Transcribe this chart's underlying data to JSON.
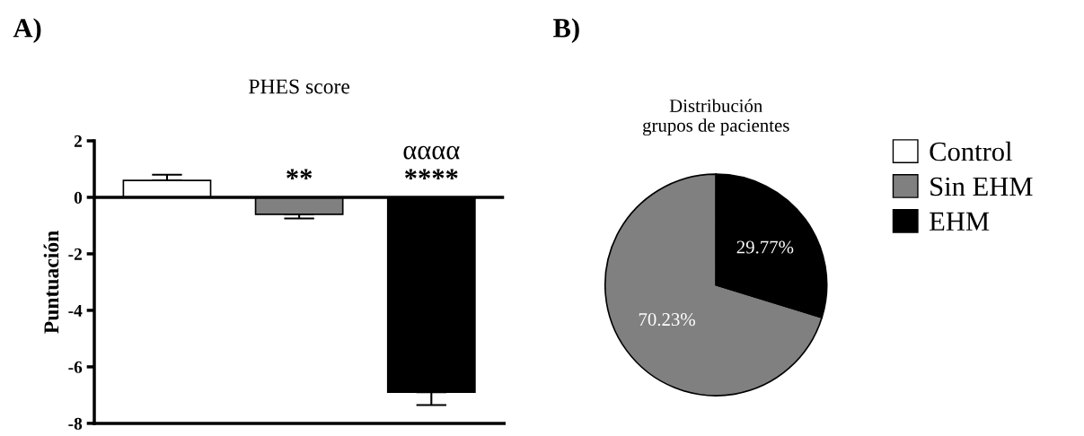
{
  "chart_data": [
    {
      "type": "bar",
      "title": "PHES score",
      "ylabel": "Puntuación",
      "categories": [
        null,
        null,
        null
      ],
      "values": [
        0.6,
        -0.6,
        -6.9
      ],
      "colors": [
        "#ffffff",
        "#808080",
        "#000000"
      ],
      "errors": [
        [
          0.6,
          0.8
        ],
        [
          -0.75,
          -0.6
        ],
        [
          -7.35,
          -6.9
        ]
      ],
      "ylim": [
        -8,
        2
      ],
      "yticks": [
        -8,
        -6,
        -4,
        -2,
        0,
        2
      ],
      "tick_labels": "y",
      "annotations": [
        "A)",
        "**",
        "αααα",
        "****"
      ]
    },
    {
      "type": "pie",
      "title": "Distribución\ngrupos de pacientes",
      "categories": [
        "Control",
        "Sin EHM",
        "EHM"
      ],
      "values": [
        0,
        70.23,
        29.77
      ],
      "colors": [
        "#ffffff",
        "#808080",
        "#000000"
      ],
      "value_labels": [
        null,
        "70.23%",
        "29.77%"
      ],
      "legend": "right",
      "annotations": [
        "B)"
      ]
    }
  ]
}
